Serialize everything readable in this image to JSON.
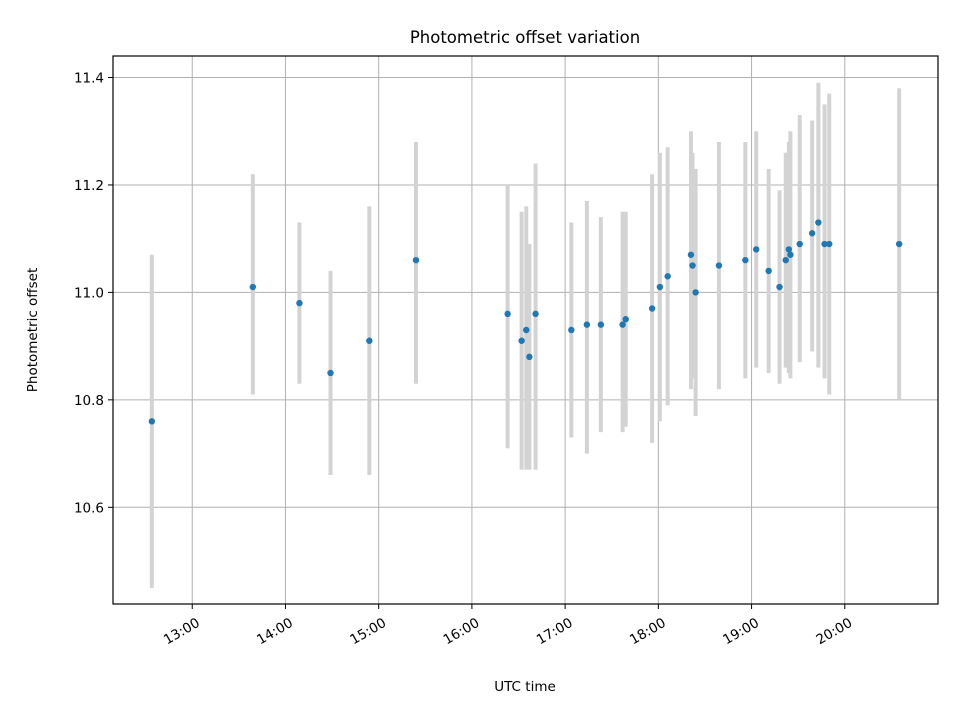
{
  "chart_data": {
    "type": "scatter",
    "title": "Photometric offset variation",
    "xlabel": "UTC time",
    "ylabel": "Photometric offset",
    "x_axis": {
      "kind": "time",
      "range": [
        "12:09",
        "21:00"
      ],
      "ticks": [
        "13:00",
        "14:00",
        "15:00",
        "16:00",
        "17:00",
        "18:00",
        "19:00",
        "20:00"
      ]
    },
    "y_axis": {
      "range": [
        10.42,
        11.44
      ],
      "ticks": [
        "10.6",
        "10.8",
        "11.0",
        "11.2",
        "11.4"
      ]
    },
    "grid": true,
    "colors": {
      "point": "#1f77b4",
      "errorbar": "#d3d3d3",
      "grid": "#b0b0b0"
    },
    "points": [
      {
        "time": "12:34",
        "y": 10.76,
        "low": 10.45,
        "high": 11.07
      },
      {
        "time": "13:39",
        "y": 11.01,
        "low": 10.81,
        "high": 11.22
      },
      {
        "time": "14:09",
        "y": 10.98,
        "low": 10.83,
        "high": 11.13
      },
      {
        "time": "14:29",
        "y": 10.85,
        "low": 10.66,
        "high": 11.04
      },
      {
        "time": "14:54",
        "y": 10.91,
        "low": 10.66,
        "high": 11.16
      },
      {
        "time": "15:24",
        "y": 11.06,
        "low": 10.83,
        "high": 11.28
      },
      {
        "time": "16:23",
        "y": 10.96,
        "low": 10.71,
        "high": 11.2
      },
      {
        "time": "16:32",
        "y": 10.91,
        "low": 10.67,
        "high": 11.15
      },
      {
        "time": "16:35",
        "y": 10.93,
        "low": 10.67,
        "high": 11.16
      },
      {
        "time": "16:37",
        "y": 10.88,
        "low": 10.67,
        "high": 11.09
      },
      {
        "time": "16:41",
        "y": 10.96,
        "low": 10.67,
        "high": 11.24
      },
      {
        "time": "17:04",
        "y": 10.93,
        "low": 10.73,
        "high": 11.13
      },
      {
        "time": "17:14",
        "y": 10.94,
        "low": 10.7,
        "high": 11.17
      },
      {
        "time": "17:23",
        "y": 10.94,
        "low": 10.74,
        "high": 11.14
      },
      {
        "time": "17:37",
        "y": 10.94,
        "low": 10.74,
        "high": 11.15
      },
      {
        "time": "17:39",
        "y": 10.95,
        "low": 10.75,
        "high": 11.15
      },
      {
        "time": "17:56",
        "y": 10.97,
        "low": 10.72,
        "high": 11.22
      },
      {
        "time": "18:01",
        "y": 11.01,
        "low": 10.76,
        "high": 11.26
      },
      {
        "time": "18:06",
        "y": 11.03,
        "low": 10.79,
        "high": 11.27
      },
      {
        "time": "18:21",
        "y": 11.07,
        "low": 10.82,
        "high": 11.3
      },
      {
        "time": "18:22",
        "y": 11.05,
        "low": 10.84,
        "high": 11.26
      },
      {
        "time": "18:24",
        "y": 11.0,
        "low": 10.77,
        "high": 11.23
      },
      {
        "time": "18:39",
        "y": 11.05,
        "low": 10.82,
        "high": 11.28
      },
      {
        "time": "18:56",
        "y": 11.06,
        "low": 10.84,
        "high": 11.28
      },
      {
        "time": "19:03",
        "y": 11.08,
        "low": 10.86,
        "high": 11.3
      },
      {
        "time": "19:11",
        "y": 11.04,
        "low": 10.85,
        "high": 11.23
      },
      {
        "time": "19:18",
        "y": 11.01,
        "low": 10.83,
        "high": 11.19
      },
      {
        "time": "19:22",
        "y": 11.06,
        "low": 10.86,
        "high": 11.26
      },
      {
        "time": "19:24",
        "y": 11.08,
        "low": 10.85,
        "high": 11.28
      },
      {
        "time": "19:25",
        "y": 11.07,
        "low": 10.84,
        "high": 11.3
      },
      {
        "time": "19:31",
        "y": 11.09,
        "low": 10.87,
        "high": 11.33
      },
      {
        "time": "19:39",
        "y": 11.11,
        "low": 10.89,
        "high": 11.32
      },
      {
        "time": "19:43",
        "y": 11.13,
        "low": 10.86,
        "high": 11.39
      },
      {
        "time": "19:47",
        "y": 11.09,
        "low": 10.84,
        "high": 11.35
      },
      {
        "time": "19:50",
        "y": 11.09,
        "low": 10.81,
        "high": 11.37
      },
      {
        "time": "20:35",
        "y": 11.09,
        "low": 10.8,
        "high": 11.38
      }
    ]
  }
}
